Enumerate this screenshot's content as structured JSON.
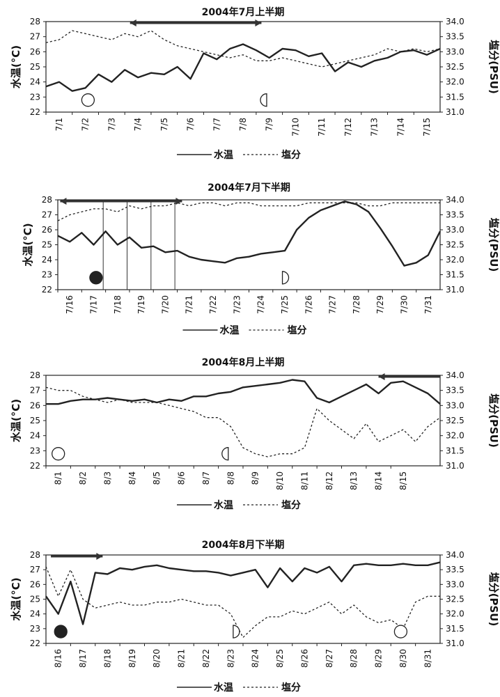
{
  "chart_data": [
    {
      "type": "line",
      "title": "2004年7月上半期",
      "ylabel_left": "水温(°C)",
      "ylabel_right": "塩分(PSU)",
      "ylim_left": [
        22,
        28
      ],
      "ylim_right": [
        31.0,
        34.0
      ],
      "yticks_left": [
        "22",
        "23",
        "24",
        "25",
        "26",
        "27",
        "28"
      ],
      "yticks_right": [
        "31.0",
        "31.5",
        "32.0",
        "32.5",
        "33.0",
        "33.5",
        "34.0"
      ],
      "x_start": 1,
      "x_end": 16,
      "categories": [
        "7/1",
        "7/2",
        "7/3",
        "7/4",
        "7/5",
        "7/6",
        "7/7",
        "7/8",
        "7/9",
        "7/10",
        "7/11",
        "7/12",
        "7/13",
        "7/14",
        "7/15"
      ],
      "legend": {
        "water_temp": "水温",
        "salinity": "塩分"
      },
      "series": [
        {
          "name": "水温",
          "style": "solid",
          "x": [
            1,
            1.5,
            2,
            2.5,
            3,
            3.5,
            4,
            4.5,
            5,
            5.5,
            6,
            6.5,
            7,
            7.5,
            8,
            8.5,
            9,
            9.5,
            10,
            10.5,
            11,
            11.5,
            12,
            12.5,
            13,
            13.5,
            14,
            14.5,
            15,
            15.5,
            16
          ],
          "values": [
            23.7,
            24.0,
            23.4,
            23.6,
            24.5,
            24.0,
            24.8,
            24.3,
            24.6,
            24.5,
            25.0,
            24.2,
            25.9,
            25.5,
            26.2,
            26.5,
            26.1,
            25.6,
            26.2,
            26.1,
            25.7,
            25.9,
            24.7,
            25.3,
            25.0,
            25.4,
            25.6,
            26.0,
            26.1,
            25.8,
            26.2
          ]
        },
        {
          "name": "塩分",
          "style": "dashed",
          "x": [
            1,
            1.5,
            2,
            2.5,
            3,
            3.5,
            4,
            4.5,
            5,
            5.5,
            6,
            6.5,
            7,
            7.5,
            8,
            8.5,
            9,
            9.5,
            10,
            10.5,
            11,
            11.5,
            12,
            12.5,
            13,
            13.5,
            14,
            14.5,
            15,
            15.5,
            16
          ],
          "values": [
            33.3,
            33.4,
            33.7,
            33.6,
            33.5,
            33.4,
            33.6,
            33.5,
            33.7,
            33.4,
            33.2,
            33.1,
            33.0,
            32.9,
            32.8,
            32.9,
            32.7,
            32.7,
            32.8,
            32.7,
            32.6,
            32.5,
            32.6,
            32.7,
            32.8,
            32.9,
            33.1,
            33.0,
            33.1,
            33.0,
            33.1
          ]
        }
      ],
      "moon_phases": [
        {
          "x": 2.6,
          "value": 22.8,
          "phase": "full"
        },
        {
          "x": 9.4,
          "value": 22.8,
          "phase": "last-quarter"
        }
      ],
      "arrows": [
        {
          "x_from": 4.2,
          "x_to": 9.2,
          "direction": "both"
        }
      ]
    },
    {
      "type": "line",
      "title": "2004年7月下半期",
      "ylabel_left": "水温(°C)",
      "ylabel_right": "塩分(PSU)",
      "ylim_left": [
        22,
        28
      ],
      "ylim_right": [
        31.0,
        34.0
      ],
      "yticks_left": [
        "22",
        "23",
        "24",
        "25",
        "26",
        "27",
        "28"
      ],
      "yticks_right": [
        "31.0",
        "31.5",
        "32.0",
        "32.5",
        "33.0",
        "33.5",
        "34.0"
      ],
      "x_start": 16,
      "x_end": 32,
      "categories": [
        "7/16",
        "7/17",
        "7/18",
        "7/19",
        "7/20",
        "7/21",
        "7/22",
        "7/23",
        "7/24",
        "7/25",
        "7/26",
        "7/27",
        "7/28",
        "7/29",
        "7/30",
        "7/31"
      ],
      "legend": {
        "water_temp": "水温",
        "salinity": "塩分"
      },
      "series": [
        {
          "name": "水温",
          "style": "solid",
          "x": [
            16,
            16.5,
            17,
            17.5,
            18,
            18.5,
            19,
            19.5,
            20,
            20.5,
            21,
            21.5,
            22,
            22.5,
            23,
            23.5,
            24,
            24.5,
            25,
            25.5,
            26,
            26.5,
            27,
            27.5,
            28,
            28.5,
            29,
            29.5,
            30,
            30.5,
            31,
            31.5,
            32
          ],
          "values": [
            25.6,
            25.2,
            25.8,
            25.0,
            25.9,
            25.0,
            25.5,
            24.8,
            24.9,
            24.5,
            24.6,
            24.2,
            24.0,
            23.9,
            23.8,
            24.1,
            24.2,
            24.4,
            24.5,
            24.6,
            26.0,
            26.8,
            27.3,
            27.6,
            27.9,
            27.7,
            27.2,
            26.1,
            24.9,
            23.6,
            23.8,
            24.3,
            25.9
          ]
        },
        {
          "name": "塩分",
          "style": "dashed",
          "x": [
            16,
            16.5,
            17,
            17.5,
            18,
            18.5,
            19,
            19.5,
            20,
            20.5,
            21,
            21.5,
            22,
            22.5,
            23,
            23.5,
            24,
            24.5,
            25,
            25.5,
            26,
            26.5,
            27,
            27.5,
            28,
            28.5,
            29,
            29.5,
            30,
            30.5,
            31,
            31.5,
            32
          ],
          "values": [
            33.3,
            33.5,
            33.6,
            33.7,
            33.7,
            33.6,
            33.8,
            33.7,
            33.8,
            33.8,
            33.9,
            33.8,
            33.9,
            33.9,
            33.8,
            33.9,
            33.9,
            33.8,
            33.8,
            33.8,
            33.8,
            33.9,
            33.9,
            33.9,
            33.9,
            33.9,
            33.8,
            33.8,
            33.9,
            33.9,
            33.9,
            33.9,
            33.9
          ]
        }
      ],
      "moon_phases": [
        {
          "x": 17.6,
          "value": 22.8,
          "phase": "new"
        },
        {
          "x": 25.4,
          "value": 22.8,
          "phase": "first-quarter"
        }
      ],
      "arrows": [
        {
          "x_from": 16.1,
          "x_to": 21.2,
          "direction": "both"
        }
      ],
      "day_lines": [
        17.9,
        18.9,
        19.9,
        20.9
      ]
    },
    {
      "type": "line",
      "title": "2004年8月上半期",
      "ylabel_left": "水温(°C)",
      "ylabel_right": "塩分(PSU)",
      "ylim_left": [
        22,
        28
      ],
      "ylim_right": [
        31.0,
        34.0
      ],
      "yticks_left": [
        "22",
        "23",
        "24",
        "25",
        "26",
        "27",
        "28"
      ],
      "yticks_right": [
        "31.0",
        "31.5",
        "32.0",
        "32.5",
        "33.0",
        "33.5",
        "34.0"
      ],
      "x_start": 1,
      "x_end": 17,
      "categories": [
        "8/1",
        "8/2",
        "8/3",
        "8/4",
        "8/5",
        "8/6",
        "8/7",
        "8/8",
        "8/9",
        "8/10",
        "8/11",
        "8/12",
        "8/13",
        "8/14",
        "8/15"
      ],
      "legend": {
        "water_temp": "水温",
        "salinity": "塩分"
      },
      "series": [
        {
          "name": "水温",
          "style": "solid",
          "x": [
            1,
            1.5,
            2,
            2.5,
            3,
            3.5,
            4,
            4.5,
            5,
            5.5,
            6,
            6.5,
            7,
            7.5,
            8,
            8.5,
            9,
            9.5,
            10,
            10.5,
            11,
            11.5,
            12,
            12.5,
            13,
            13.5,
            14,
            14.5,
            15,
            15.5,
            16,
            16.5,
            17
          ],
          "values": [
            26.1,
            26.1,
            26.3,
            26.4,
            26.4,
            26.5,
            26.4,
            26.3,
            26.4,
            26.2,
            26.4,
            26.3,
            26.6,
            26.6,
            26.8,
            26.9,
            27.2,
            27.3,
            27.4,
            27.5,
            27.7,
            27.6,
            26.5,
            26.2,
            26.6,
            27.0,
            27.4,
            26.8,
            27.5,
            27.6,
            27.2,
            26.8,
            26.1
          ]
        },
        {
          "name": "塩分",
          "style": "dashed",
          "x": [
            1,
            1.5,
            2,
            2.5,
            3,
            3.5,
            4,
            4.5,
            5,
            5.5,
            6,
            6.5,
            7,
            7.5,
            8,
            8.5,
            9,
            9.5,
            10,
            10.5,
            11,
            11.5,
            12,
            12.5,
            13,
            13.5,
            14,
            14.5,
            15,
            15.5,
            16,
            16.5,
            17
          ],
          "values": [
            33.6,
            33.5,
            33.5,
            33.3,
            33.2,
            33.1,
            33.2,
            33.1,
            33.1,
            33.1,
            33.0,
            32.9,
            32.8,
            32.6,
            32.6,
            32.3,
            31.6,
            31.4,
            31.3,
            31.4,
            31.4,
            31.6,
            32.9,
            32.5,
            32.2,
            31.9,
            32.4,
            31.8,
            32.0,
            32.2,
            31.8,
            32.3,
            32.6
          ]
        }
      ],
      "moon_phases": [
        {
          "x": 1.5,
          "value": 22.8,
          "phase": "full"
        },
        {
          "x": 8.4,
          "value": 22.8,
          "phase": "last-quarter"
        }
      ],
      "arrows": [
        {
          "x_from": 17.0,
          "x_to": 14.5,
          "direction": "left"
        }
      ]
    },
    {
      "type": "line",
      "title": "2004年8月下半期",
      "ylabel_left": "水温(°C)",
      "ylabel_right": "塩分(PSU)",
      "ylim_left": [
        22,
        28
      ],
      "ylim_right": [
        31.0,
        34.0
      ],
      "yticks_left": [
        "22",
        "23",
        "24",
        "25",
        "26",
        "27",
        "28"
      ],
      "yticks_right": [
        "31.0",
        "31.5",
        "32.0",
        "32.5",
        "33.0",
        "33.5",
        "34.0"
      ],
      "x_start": 16,
      "x_end": 32,
      "categories": [
        "8/16",
        "8/17",
        "8/18",
        "8/19",
        "8/20",
        "8/21",
        "8/22",
        "8/23",
        "8/24",
        "8/25",
        "8/26",
        "8/27",
        "8/28",
        "8/29",
        "8/30",
        "8/31"
      ],
      "legend": {
        "water_temp": "水温",
        "salinity": "塩分"
      },
      "series": [
        {
          "name": "水温",
          "style": "solid",
          "x": [
            16,
            16.5,
            17,
            17.5,
            18,
            18.5,
            19,
            19.5,
            20,
            20.5,
            21,
            21.5,
            22,
            22.5,
            23,
            23.5,
            24,
            24.5,
            25,
            25.5,
            26,
            26.5,
            27,
            27.5,
            28,
            28.5,
            29,
            29.5,
            30,
            30.5,
            31,
            31.5,
            32
          ],
          "values": [
            25.2,
            24.0,
            26.2,
            23.3,
            26.8,
            26.7,
            27.1,
            27.0,
            27.2,
            27.3,
            27.1,
            27.0,
            26.9,
            26.9,
            26.8,
            26.6,
            26.8,
            27.0,
            25.8,
            27.1,
            26.2,
            27.1,
            26.8,
            27.2,
            26.2,
            27.3,
            27.4,
            27.3,
            27.3,
            27.4,
            27.3,
            27.3,
            27.5
          ]
        },
        {
          "name": "塩分",
          "style": "dashed",
          "x": [
            16,
            16.5,
            17,
            17.5,
            18,
            18.5,
            19,
            19.5,
            20,
            20.5,
            21,
            21.5,
            22,
            22.5,
            23,
            23.5,
            24,
            24.5,
            25,
            25.5,
            26,
            26.5,
            27,
            27.5,
            28,
            28.5,
            29,
            29.5,
            30,
            30.5,
            31,
            31.5,
            32
          ],
          "values": [
            33.6,
            32.6,
            33.5,
            32.5,
            32.2,
            32.3,
            32.4,
            32.3,
            32.3,
            32.4,
            32.4,
            32.5,
            32.4,
            32.3,
            32.3,
            32.0,
            31.2,
            31.6,
            31.9,
            31.9,
            32.1,
            32.0,
            32.2,
            32.4,
            32.0,
            32.3,
            31.9,
            31.7,
            31.8,
            31.5,
            32.4,
            32.6,
            32.6
          ]
        }
      ],
      "moon_phases": [
        {
          "x": 16.6,
          "value": 22.8,
          "phase": "new"
        },
        {
          "x": 23.6,
          "value": 22.8,
          "phase": "first-quarter"
        },
        {
          "x": 30.4,
          "value": 22.8,
          "phase": "full"
        }
      ],
      "arrows": [
        {
          "x_from": 16.2,
          "x_to": 18.3,
          "direction": "right"
        }
      ]
    }
  ]
}
